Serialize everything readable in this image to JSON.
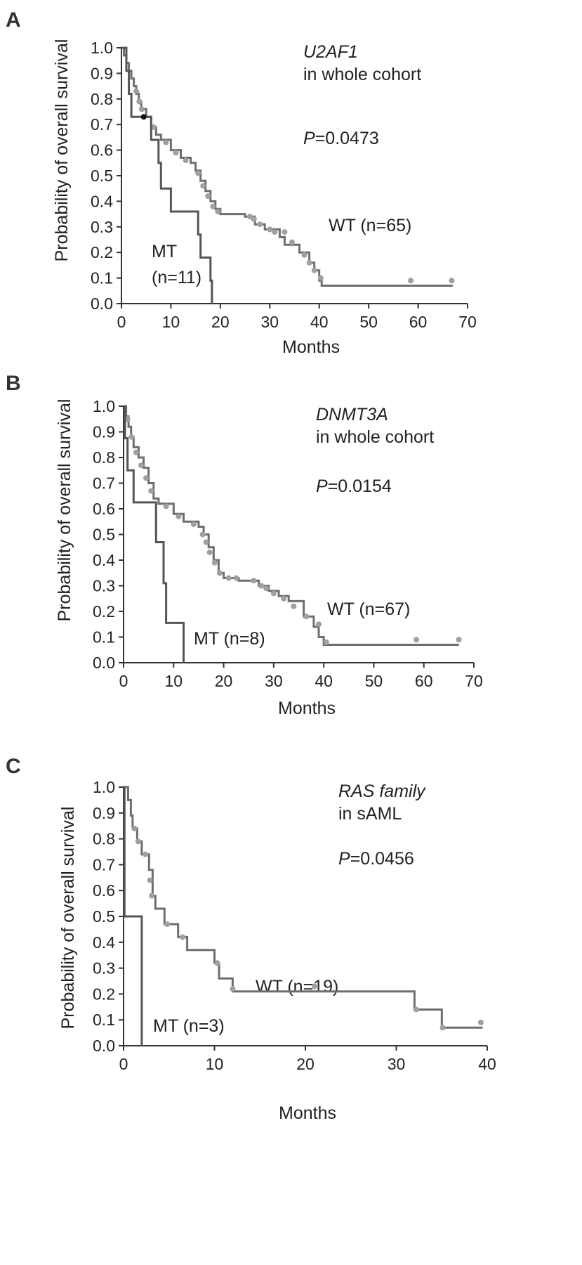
{
  "chart_data": [
    {
      "panel": "A",
      "type": "line",
      "title": "U2AF1",
      "subtitle": "in whole cohort",
      "p_label": "P",
      "p_value": "=0.0473",
      "xlabel": "Months",
      "ylabel": "Probability of overall survival",
      "xlim": [
        0,
        70
      ],
      "ylim": [
        0,
        1.0
      ],
      "x_ticks": [
        "0",
        "10",
        "20",
        "30",
        "40",
        "50",
        "60",
        "70"
      ],
      "y_ticks": [
        "0.0",
        "0.1",
        "0.2",
        "0.3",
        "0.4",
        "0.5",
        "0.6",
        "0.7",
        "0.8",
        "0.9",
        "1.0"
      ],
      "series": [
        {
          "name": "WT (n=65)",
          "label_lines": [
            "WT (n=65)"
          ],
          "color": "#6e6e6e",
          "steps": [
            [
              0,
              1.0
            ],
            [
              0.5,
              0.97
            ],
            [
              1,
              0.94
            ],
            [
              1.5,
              0.91
            ],
            [
              2,
              0.88
            ],
            [
              2.5,
              0.85
            ],
            [
              3,
              0.82
            ],
            [
              3.5,
              0.79
            ],
            [
              4,
              0.76
            ],
            [
              5,
              0.73
            ],
            [
              6,
              0.69
            ],
            [
              7,
              0.66
            ],
            [
              8,
              0.64
            ],
            [
              10,
              0.6
            ],
            [
              12,
              0.57
            ],
            [
              14,
              0.55
            ],
            [
              15,
              0.52
            ],
            [
              16,
              0.48
            ],
            [
              17,
              0.44
            ],
            [
              18,
              0.4
            ],
            [
              19,
              0.37
            ],
            [
              20,
              0.35
            ],
            [
              25,
              0.34
            ],
            [
              27,
              0.31
            ],
            [
              29,
              0.29
            ],
            [
              32,
              0.26
            ],
            [
              33,
              0.23
            ],
            [
              36,
              0.2
            ],
            [
              38,
              0.16
            ],
            [
              39,
              0.13
            ],
            [
              40,
              0.09
            ],
            [
              40.5,
              0.07
            ],
            [
              67,
              0.07
            ]
          ],
          "censors": [
            [
              3,
              0.83
            ],
            [
              3.6,
              0.79
            ],
            [
              4.1,
              0.76
            ],
            [
              6.5,
              0.69
            ],
            [
              9,
              0.63
            ],
            [
              11,
              0.59
            ],
            [
              13,
              0.56
            ],
            [
              15.5,
              0.51
            ],
            [
              16.5,
              0.46
            ],
            [
              17.5,
              0.42
            ],
            [
              18.5,
              0.38
            ],
            [
              19.5,
              0.36
            ],
            [
              26,
              0.34
            ],
            [
              26.8,
              0.33
            ],
            [
              28,
              0.31
            ],
            [
              30,
              0.29
            ],
            [
              31,
              0.28
            ],
            [
              33,
              0.28
            ],
            [
              34.5,
              0.24
            ],
            [
              37,
              0.19
            ],
            [
              38,
              0.16
            ],
            [
              39,
              0.13
            ],
            [
              40.3,
              0.1
            ],
            [
              58.5,
              0.09
            ],
            [
              66.8,
              0.09
            ]
          ]
        },
        {
          "name": "MT (n=11)",
          "label_lines": [
            "MT",
            "(n=11)"
          ],
          "color": "#555555",
          "steps": [
            [
              0,
              1.0
            ],
            [
              1,
              0.91
            ],
            [
              1.5,
              0.82
            ],
            [
              2,
              0.73
            ],
            [
              6,
              0.64
            ],
            [
              7.5,
              0.55
            ],
            [
              8,
              0.45
            ],
            [
              10,
              0.36
            ],
            [
              15.5,
              0.27
            ],
            [
              16,
              0.18
            ],
            [
              18,
              0.09
            ],
            [
              18.3,
              0.0
            ]
          ],
          "censors": [
            [
              4.5,
              0.73
            ]
          ],
          "censor_colors": [
            "#111111"
          ]
        }
      ]
    },
    {
      "panel": "B",
      "type": "line",
      "title": "DNMT3A",
      "subtitle": "in whole cohort",
      "p_label": "P",
      "p_value": "=0.0154",
      "xlabel": "Months",
      "ylabel": "Probability of overall survival",
      "xlim": [
        0,
        70
      ],
      "ylim": [
        0,
        1.0
      ],
      "x_ticks": [
        "0",
        "10",
        "20",
        "30",
        "40",
        "50",
        "60",
        "70"
      ],
      "y_ticks": [
        "0.0",
        "0.1",
        "0.2",
        "0.3",
        "0.4",
        "0.5",
        "0.6",
        "0.7",
        "0.8",
        "0.9",
        "1.0"
      ],
      "series": [
        {
          "name": "WT (n=67)",
          "label_lines": [
            "WT (n=67)"
          ],
          "color": "#6e6e6e",
          "steps": [
            [
              0,
              1.0
            ],
            [
              0.5,
              0.96
            ],
            [
              1,
              0.92
            ],
            [
              1.5,
              0.88
            ],
            [
              2,
              0.84
            ],
            [
              3,
              0.8
            ],
            [
              4,
              0.76
            ],
            [
              5,
              0.7
            ],
            [
              6,
              0.64
            ],
            [
              7,
              0.62
            ],
            [
              10,
              0.58
            ],
            [
              12,
              0.55
            ],
            [
              15,
              0.53
            ],
            [
              16,
              0.5
            ],
            [
              17,
              0.45
            ],
            [
              18,
              0.4
            ],
            [
              19,
              0.35
            ],
            [
              20,
              0.33
            ],
            [
              23,
              0.32
            ],
            [
              27,
              0.3
            ],
            [
              29,
              0.28
            ],
            [
              31,
              0.26
            ],
            [
              33,
              0.24
            ],
            [
              36,
              0.18
            ],
            [
              38,
              0.14
            ],
            [
              39,
              0.1
            ],
            [
              40,
              0.07
            ],
            [
              67,
              0.07
            ]
          ],
          "censors": [
            [
              0.8,
              0.95
            ],
            [
              1.6,
              0.88
            ],
            [
              2.5,
              0.82
            ],
            [
              3.5,
              0.77
            ],
            [
              4.5,
              0.72
            ],
            [
              5.5,
              0.67
            ],
            [
              8.5,
              0.61
            ],
            [
              11,
              0.57
            ],
            [
              14,
              0.54
            ],
            [
              15.8,
              0.5
            ],
            [
              16.5,
              0.47
            ],
            [
              17.2,
              0.43
            ],
            [
              18.2,
              0.39
            ],
            [
              19.2,
              0.35
            ],
            [
              21,
              0.33
            ],
            [
              22.5,
              0.33
            ],
            [
              26,
              0.32
            ],
            [
              27.5,
              0.3
            ],
            [
              28.5,
              0.29
            ],
            [
              30,
              0.27
            ],
            [
              32,
              0.25
            ],
            [
              34,
              0.22
            ],
            [
              36.5,
              0.18
            ],
            [
              39,
              0.15
            ],
            [
              40.5,
              0.08
            ],
            [
              58.5,
              0.09
            ],
            [
              67,
              0.09
            ]
          ]
        },
        {
          "name": "MT (n=8)",
          "label_lines": [
            "MT (n=8)"
          ],
          "color": "#555555",
          "steps": [
            [
              0,
              1.0
            ],
            [
              0.3,
              0.875
            ],
            [
              0.8,
              0.75
            ],
            [
              2,
              0.625
            ],
            [
              6.5,
              0.47
            ],
            [
              8,
              0.31
            ],
            [
              8.5,
              0.155
            ],
            [
              12,
              0.0
            ]
          ],
          "censors": []
        }
      ]
    },
    {
      "panel": "C",
      "type": "line",
      "title": "RAS family",
      "subtitle": "in sAML",
      "p_label": "P",
      "p_value": "=0.0456",
      "xlabel": "Months",
      "ylabel": "Probability of overall survival",
      "xlim": [
        0,
        40
      ],
      "ylim": [
        0,
        1.0
      ],
      "x_ticks": [
        "0",
        "10",
        "20",
        "30",
        "40"
      ],
      "y_ticks": [
        "0.0",
        "0.1",
        "0.2",
        "0.3",
        "0.4",
        "0.5",
        "0.6",
        "0.7",
        "0.8",
        "0.9",
        "1.0"
      ],
      "series": [
        {
          "name": "WT (n=19)",
          "label_lines": [
            "WT (n=19)"
          ],
          "color": "#6e6e6e",
          "steps": [
            [
              0,
              1.0
            ],
            [
              0.5,
              0.95
            ],
            [
              0.8,
              0.89
            ],
            [
              1,
              0.84
            ],
            [
              1.5,
              0.79
            ],
            [
              2,
              0.74
            ],
            [
              2.8,
              0.68
            ],
            [
              3.2,
              0.58
            ],
            [
              3.5,
              0.53
            ],
            [
              4.5,
              0.47
            ],
            [
              6,
              0.42
            ],
            [
              7,
              0.37
            ],
            [
              10,
              0.32
            ],
            [
              10.5,
              0.26
            ],
            [
              12,
              0.21
            ],
            [
              32,
              0.14
            ],
            [
              35,
              0.07
            ],
            [
              39.5,
              0.07
            ]
          ],
          "censors": [
            [
              1.2,
              0.84
            ],
            [
              1.6,
              0.79
            ],
            [
              2.4,
              0.74
            ],
            [
              2.9,
              0.64
            ],
            [
              3.1,
              0.58
            ],
            [
              4.8,
              0.47
            ],
            [
              6.5,
              0.42
            ],
            [
              10.3,
              0.32
            ],
            [
              12,
              0.22
            ],
            [
              21,
              0.23
            ],
            [
              32.2,
              0.14
            ],
            [
              35.1,
              0.07
            ],
            [
              39.3,
              0.09
            ]
          ]
        },
        {
          "name": "MT (n=3)",
          "label_lines": [
            "MT (n=3)"
          ],
          "color": "#555555",
          "steps": [
            [
              0,
              1.0
            ],
            [
              0.1,
              0.5
            ],
            [
              2,
              0.0
            ]
          ],
          "censors": []
        }
      ]
    }
  ]
}
